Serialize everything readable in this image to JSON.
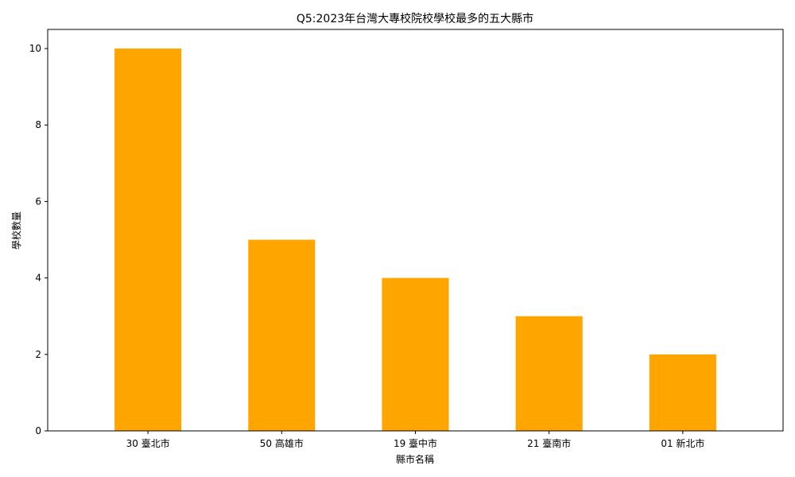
{
  "chart_data": {
    "type": "bar",
    "title": "Q5:2023年台灣大專校院校學校最多的五大縣市",
    "xlabel": "縣市名稱",
    "ylabel": "學校數量",
    "categories": [
      "30 臺北市",
      "50 高雄市",
      "19 臺中市",
      "21 臺南市",
      "01 新北市"
    ],
    "values": [
      10,
      5,
      4,
      3,
      2
    ],
    "ylim": [
      0,
      10.5
    ],
    "yticks": [
      0,
      2,
      4,
      6,
      8,
      10
    ],
    "bar_color": "#ffa500",
    "grid": false,
    "legend": "none"
  }
}
